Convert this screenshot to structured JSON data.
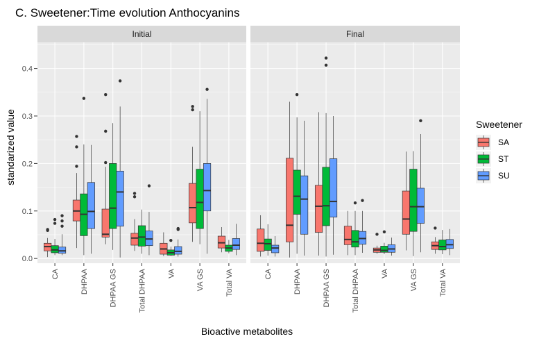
{
  "chart_data": {
    "type": "boxplot",
    "title": "C. Sweetener:Time evolution Anthocyanins",
    "xlabel": "Bioactive metabolites",
    "ylabel": "standarized value",
    "ylim": [
      -0.01,
      0.455
    ],
    "yticks": [
      0.0,
      0.1,
      0.2,
      0.3,
      0.4
    ],
    "ytick_labels": [
      "0.0",
      "0.1",
      "0.2",
      "0.3",
      "0.4"
    ],
    "categories": [
      "CA",
      "DHPAA",
      "DHPAA GS",
      "Total DHPAA",
      "VA",
      "VA GS",
      "Total VA"
    ],
    "legend": {
      "title": "Sweetener",
      "position": "right",
      "entries": [
        {
          "label": "SA",
          "color": "#F8766D"
        },
        {
          "label": "ST",
          "color": "#00BA38"
        },
        {
          "label": "SU",
          "color": "#619CFF"
        }
      ]
    },
    "grid": true,
    "panels": [
      {
        "label": "Initial",
        "groups": [
          {
            "category": "CA",
            "boxes": [
              {
                "sweetener": "SA",
                "whisker_low": 0.003,
                "q1": 0.016,
                "median": 0.025,
                "q3": 0.032,
                "whisker_high": 0.043,
                "outliers": [
                  0.059,
                  0.061
                ]
              },
              {
                "sweetener": "ST",
                "whisker_low": 0.007,
                "q1": 0.012,
                "median": 0.018,
                "q3": 0.027,
                "whisker_high": 0.041,
                "outliers": [
                  0.074,
                  0.082
                ]
              },
              {
                "sweetener": "SU",
                "whisker_low": 0.007,
                "q1": 0.011,
                "median": 0.016,
                "q3": 0.024,
                "whisker_high": 0.051,
                "outliers": [
                  0.068,
                  0.079,
                  0.09
                ]
              }
            ]
          },
          {
            "category": "DHPAA",
            "boxes": [
              {
                "sweetener": "SA",
                "whisker_low": 0.022,
                "q1": 0.079,
                "median": 0.1,
                "q3": 0.123,
                "whisker_high": 0.18,
                "outliers": [
                  0.194,
                  0.235,
                  0.257
                ]
              },
              {
                "sweetener": "ST",
                "whisker_low": 0.007,
                "q1": 0.048,
                "median": 0.093,
                "q3": 0.136,
                "whisker_high": 0.24,
                "outliers": [
                  0.337
                ]
              },
              {
                "sweetener": "SU",
                "whisker_low": 0.01,
                "q1": 0.063,
                "median": 0.099,
                "q3": 0.16,
                "whisker_high": 0.239,
                "outliers": []
              }
            ]
          },
          {
            "category": "DHPAA GS",
            "boxes": [
              {
                "sweetener": "SA",
                "whisker_low": 0.03,
                "q1": 0.045,
                "median": 0.051,
                "q3": 0.104,
                "whisker_high": 0.193,
                "outliers": [
                  0.202,
                  0.268,
                  0.345
                ]
              },
              {
                "sweetener": "ST",
                "whisker_low": 0.018,
                "q1": 0.063,
                "median": 0.106,
                "q3": 0.2,
                "whisker_high": 0.285,
                "outliers": []
              },
              {
                "sweetener": "SU",
                "whisker_low": 0.002,
                "q1": 0.068,
                "median": 0.14,
                "q3": 0.184,
                "whisker_high": 0.32,
                "outliers": [
                  0.374
                ]
              }
            ]
          },
          {
            "category": "Total DHPAA",
            "boxes": [
              {
                "sweetener": "SA",
                "whisker_low": 0.016,
                "q1": 0.028,
                "median": 0.043,
                "q3": 0.053,
                "whisker_high": 0.083,
                "outliers": [
                  0.13,
                  0.137
                ]
              },
              {
                "sweetener": "ST",
                "whisker_low": 0.01,
                "q1": 0.026,
                "median": 0.045,
                "q3": 0.069,
                "whisker_high": 0.103,
                "outliers": []
              },
              {
                "sweetener": "SU",
                "whisker_low": 0.007,
                "q1": 0.027,
                "median": 0.041,
                "q3": 0.058,
                "whisker_high": 0.098,
                "outliers": [
                  0.153
                ]
              }
            ]
          },
          {
            "category": "VA",
            "boxes": [
              {
                "sweetener": "SA",
                "whisker_low": 0.005,
                "q1": 0.009,
                "median": 0.02,
                "q3": 0.032,
                "whisker_high": 0.055,
                "outliers": []
              },
              {
                "sweetener": "ST",
                "whisker_low": 0.005,
                "q1": 0.007,
                "median": 0.012,
                "q3": 0.018,
                "whisker_high": 0.025,
                "outliers": [
                  0.038
                ]
              },
              {
                "sweetener": "SU",
                "whisker_low": 0.004,
                "q1": 0.009,
                "median": 0.015,
                "q3": 0.025,
                "whisker_high": 0.04,
                "outliers": [
                  0.061,
                  0.063
                ]
              }
            ]
          },
          {
            "category": "VA GS",
            "boxes": [
              {
                "sweetener": "SA",
                "whisker_low": 0.035,
                "q1": 0.075,
                "median": 0.107,
                "q3": 0.158,
                "whisker_high": 0.235,
                "outliers": [
                  0.313,
                  0.32
                ]
              },
              {
                "sweetener": "ST",
                "whisker_low": 0.03,
                "q1": 0.063,
                "median": 0.118,
                "q3": 0.188,
                "whisker_high": 0.31,
                "outliers": []
              },
              {
                "sweetener": "SU",
                "whisker_low": 0.01,
                "q1": 0.1,
                "median": 0.143,
                "q3": 0.2,
                "whisker_high": 0.336,
                "outliers": [
                  0.356
                ]
              }
            ]
          },
          {
            "category": "Total VA",
            "boxes": [
              {
                "sweetener": "SA",
                "whisker_low": 0.013,
                "q1": 0.022,
                "median": 0.033,
                "q3": 0.047,
                "whisker_high": 0.066,
                "outliers": []
              },
              {
                "sweetener": "ST",
                "whisker_low": 0.011,
                "q1": 0.015,
                "median": 0.022,
                "q3": 0.028,
                "whisker_high": 0.039,
                "outliers": []
              },
              {
                "sweetener": "SU",
                "whisker_low": 0.007,
                "q1": 0.019,
                "median": 0.028,
                "q3": 0.042,
                "whisker_high": 0.073,
                "outliers": []
              }
            ]
          }
        ]
      },
      {
        "label": "Final",
        "groups": [
          {
            "category": "CA",
            "boxes": [
              {
                "sweetener": "SA",
                "whisker_low": 0.004,
                "q1": 0.015,
                "median": 0.032,
                "q3": 0.062,
                "whisker_high": 0.091,
                "outliers": []
              },
              {
                "sweetener": "ST",
                "whisker_low": 0.006,
                "q1": 0.017,
                "median": 0.031,
                "q3": 0.041,
                "whisker_high": 0.072,
                "outliers": []
              },
              {
                "sweetener": "SU",
                "whisker_low": 0.004,
                "q1": 0.012,
                "median": 0.022,
                "q3": 0.028,
                "whisker_high": 0.047,
                "outliers": []
              }
            ]
          },
          {
            "category": "DHPAA",
            "boxes": [
              {
                "sweetener": "SA",
                "whisker_low": 0.002,
                "q1": 0.035,
                "median": 0.07,
                "q3": 0.211,
                "whisker_high": 0.33,
                "outliers": []
              },
              {
                "sweetener": "ST",
                "whisker_low": 0.01,
                "q1": 0.093,
                "median": 0.131,
                "q3": 0.186,
                "whisker_high": 0.297,
                "outliers": [
                  0.345
                ]
              },
              {
                "sweetener": "SU",
                "whisker_low": 0.006,
                "q1": 0.051,
                "median": 0.125,
                "q3": 0.174,
                "whisker_high": 0.29,
                "outliers": []
              }
            ]
          },
          {
            "category": "DHPAA GS",
            "boxes": [
              {
                "sweetener": "SA",
                "whisker_low": 0.006,
                "q1": 0.055,
                "median": 0.11,
                "q3": 0.154,
                "whisker_high": 0.308,
                "outliers": []
              },
              {
                "sweetener": "ST",
                "whisker_low": 0.004,
                "q1": 0.069,
                "median": 0.111,
                "q3": 0.192,
                "whisker_high": 0.306,
                "outliers": [
                  0.407,
                  0.422
                ]
              },
              {
                "sweetener": "SU",
                "whisker_low": 0.008,
                "q1": 0.087,
                "median": 0.12,
                "q3": 0.21,
                "whisker_high": 0.3,
                "outliers": []
              }
            ]
          },
          {
            "category": "Total DHPAA",
            "boxes": [
              {
                "sweetener": "SA",
                "whisker_low": 0.007,
                "q1": 0.029,
                "median": 0.04,
                "q3": 0.068,
                "whisker_high": 0.1,
                "outliers": []
              },
              {
                "sweetener": "ST",
                "whisker_low": 0.007,
                "q1": 0.024,
                "median": 0.035,
                "q3": 0.059,
                "whisker_high": 0.1,
                "outliers": [
                  0.117
                ]
              },
              {
                "sweetener": "SU",
                "whisker_low": 0.012,
                "q1": 0.03,
                "median": 0.042,
                "q3": 0.057,
                "whisker_high": 0.1,
                "outliers": [
                  0.122
                ]
              }
            ]
          },
          {
            "category": "VA",
            "boxes": [
              {
                "sweetener": "SA",
                "whisker_low": 0.01,
                "q1": 0.013,
                "median": 0.018,
                "q3": 0.022,
                "whisker_high": 0.027,
                "outliers": [
                  0.051
                ]
              },
              {
                "sweetener": "ST",
                "whisker_low": 0.009,
                "q1": 0.013,
                "median": 0.017,
                "q3": 0.026,
                "whisker_high": 0.033,
                "outliers": [
                  0.056
                ]
              },
              {
                "sweetener": "SU",
                "whisker_low": 0.006,
                "q1": 0.013,
                "median": 0.02,
                "q3": 0.029,
                "whisker_high": 0.044,
                "outliers": []
              }
            ]
          },
          {
            "category": "VA GS",
            "boxes": [
              {
                "sweetener": "SA",
                "whisker_low": 0.017,
                "q1": 0.051,
                "median": 0.083,
                "q3": 0.142,
                "whisker_high": 0.225,
                "outliers": []
              },
              {
                "sweetener": "ST",
                "whisker_low": 0.005,
                "q1": 0.057,
                "median": 0.109,
                "q3": 0.188,
                "whisker_high": 0.226,
                "outliers": []
              },
              {
                "sweetener": "SU",
                "whisker_low": 0.013,
                "q1": 0.074,
                "median": 0.109,
                "q3": 0.148,
                "whisker_high": 0.262,
                "outliers": [
                  0.29
                ]
              }
            ]
          },
          {
            "category": "Total VA",
            "boxes": [
              {
                "sweetener": "SA",
                "whisker_low": 0.01,
                "q1": 0.019,
                "median": 0.027,
                "q3": 0.035,
                "whisker_high": 0.045,
                "outliers": [
                  0.064
                ]
              },
              {
                "sweetener": "ST",
                "whisker_low": 0.009,
                "q1": 0.018,
                "median": 0.025,
                "q3": 0.039,
                "whisker_high": 0.06,
                "outliers": []
              },
              {
                "sweetener": "SU",
                "whisker_low": 0.007,
                "q1": 0.021,
                "median": 0.029,
                "q3": 0.04,
                "whisker_high": 0.062,
                "outliers": []
              }
            ]
          }
        ]
      }
    ]
  }
}
